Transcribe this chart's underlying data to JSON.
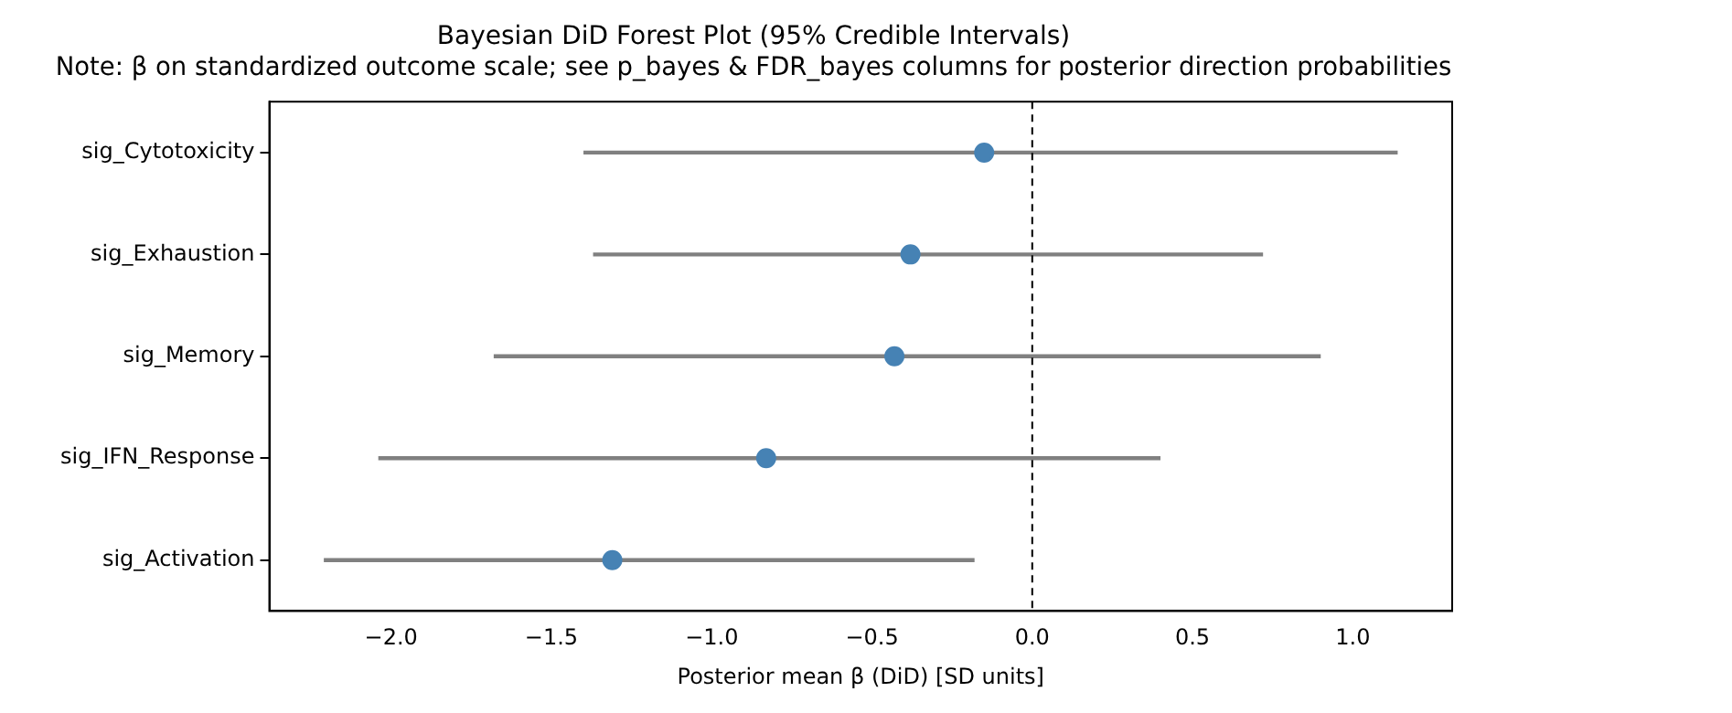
{
  "chart_data": {
    "type": "scatter",
    "title": "Bayesian DiD Forest Plot (95% Credible Intervals)",
    "subtitle": "Note: β on standardized outcome scale; see p_bayes & FDR_bayes columns for posterior direction probabilities",
    "xlabel": "Posterior mean β (DiD) [SD units]",
    "categories": [
      "sig_Cytotoxicity",
      "sig_Exhaustion",
      "sig_Memory",
      "sig_IFN_Response",
      "sig_Activation"
    ],
    "orientation": "horizontal",
    "values": [
      -0.15,
      -0.38,
      -0.43,
      -0.83,
      -1.31
    ],
    "errors": [
      [
        -1.4,
        1.14
      ],
      [
        -1.37,
        0.72
      ],
      [
        -1.68,
        0.9
      ],
      [
        -2.04,
        0.4
      ],
      [
        -2.21,
        -0.18
      ]
    ],
    "color": "#4682b4",
    "marker": "circle",
    "xlim": [
      -2.38,
      1.31
    ],
    "xticks": [
      {
        "value": -2,
        "label": "−2.0"
      },
      {
        "value": -1.5,
        "label": "−1.5"
      },
      {
        "value": -1,
        "label": "−1.0"
      },
      {
        "value": -0.5,
        "label": "−0.5"
      },
      {
        "value": 0,
        "label": "0.0"
      },
      {
        "value": 0.5,
        "label": "0.5"
      },
      {
        "value": 1,
        "label": "1.0"
      }
    ],
    "ref_lines": [
      {
        "axis": "x",
        "value": 0,
        "color": "#000000",
        "line_style": "dashed"
      }
    ],
    "grid": false,
    "legend": false
  }
}
